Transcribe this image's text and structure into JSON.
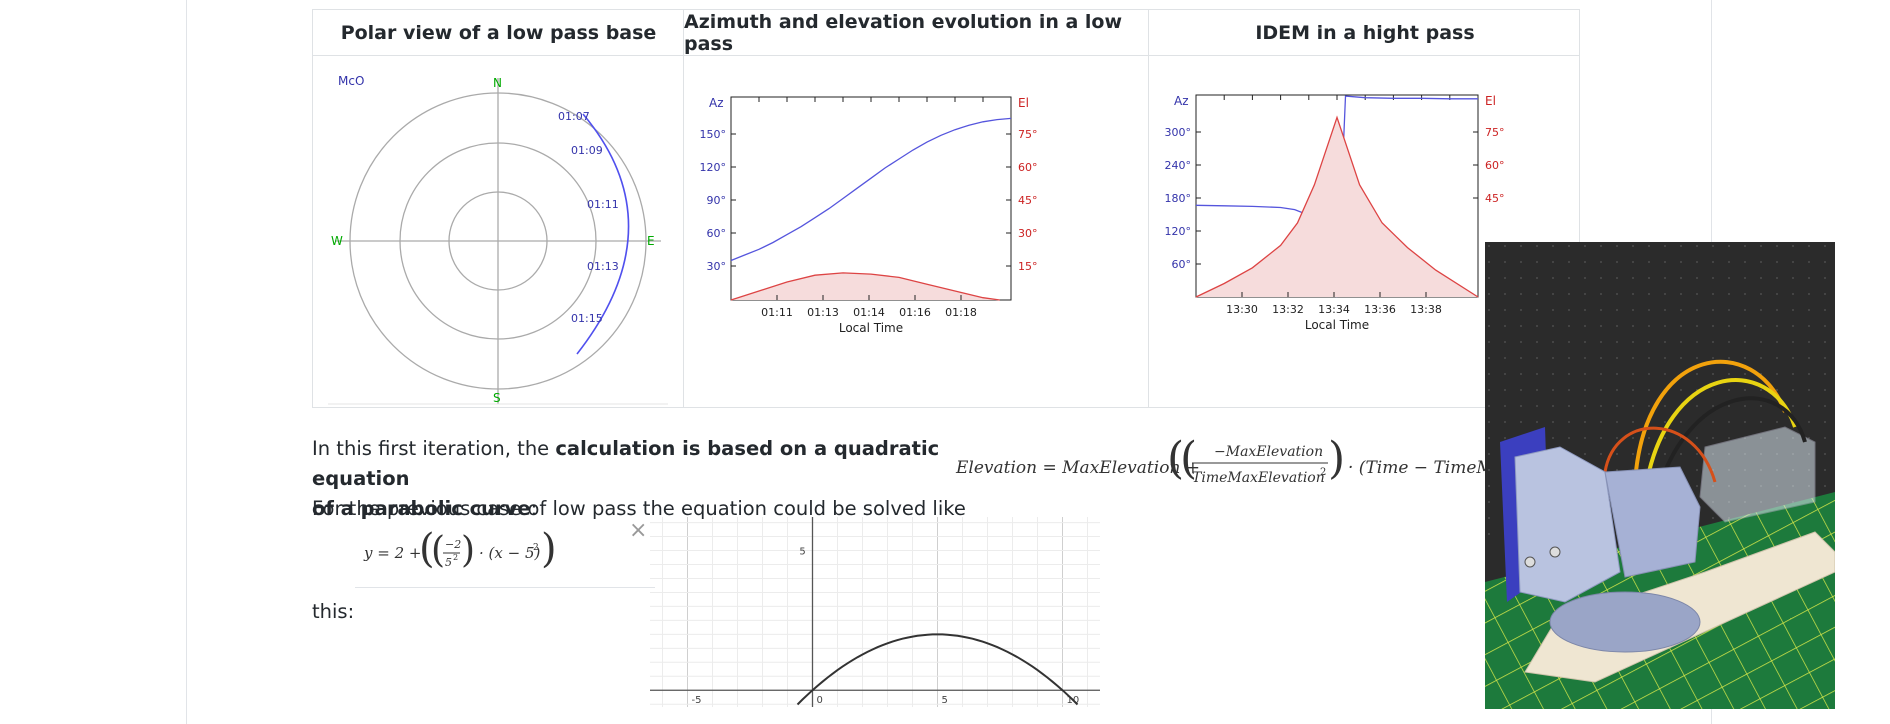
{
  "table": {
    "headers": [
      "Polar view of a low pass base",
      "Azimuth and elevation evolution in a low pass",
      "IDEM in a hight pass"
    ]
  },
  "polar": {
    "corner_label": "McO",
    "cardinals": {
      "n": "N",
      "s": "S",
      "e": "E",
      "w": "W"
    },
    "time_labels": [
      "01:07",
      "01:09",
      "01:11",
      "01:13",
      "01:15"
    ],
    "colors": {
      "ring": "#aaaaaa",
      "cardinal": "#00aa00",
      "track": "#5050ee",
      "label": "#3333aa"
    }
  },
  "chart_data": [
    {
      "type": "line",
      "title": "",
      "xlabel": "Local Time",
      "ylabel_left": "Az",
      "ylabel_right": "El",
      "x_ticks": [
        "01:11",
        "01:13",
        "01:14",
        "01:16",
        "01:18"
      ],
      "y_left_ticks": [
        "30°",
        "60°",
        "90°",
        "120°",
        "150°"
      ],
      "y_right_ticks": [
        "15°",
        "30°",
        "45°",
        "60°",
        "75°"
      ],
      "series": [
        {
          "axis": "left",
          "color": "#5555dd",
          "x": [
            0,
            0.05,
            0.1,
            0.15,
            0.2,
            0.25,
            0.3,
            0.35,
            0.4,
            0.45,
            0.5,
            0.55,
            0.6,
            0.65,
            0.7,
            0.75,
            0.8,
            0.85,
            0.9,
            0.95,
            1
          ],
          "y": [
            35,
            40,
            45,
            51,
            58,
            65,
            73,
            81,
            90,
            99,
            108,
            117,
            125,
            133,
            140,
            146,
            151,
            155,
            158,
            160,
            161
          ]
        },
        {
          "axis": "right",
          "color": "#dd4444",
          "fill": "#f6dcdc",
          "x": [
            0,
            0.1,
            0.2,
            0.3,
            0.4,
            0.5,
            0.6,
            0.7,
            0.8,
            0.9,
            0.96
          ],
          "y": [
            0,
            4,
            8,
            11,
            12,
            11.5,
            10,
            7,
            4,
            1,
            0
          ]
        }
      ],
      "ylim_left": [
        0,
        180
      ],
      "ylim_right": [
        0,
        90
      ]
    },
    {
      "type": "line",
      "title": "",
      "xlabel": "Local Time",
      "ylabel_left": "Az",
      "ylabel_right": "El",
      "x_ticks": [
        "13:30",
        "13:32",
        "13:34",
        "13:36",
        "13:38"
      ],
      "y_left_ticks": [
        "60°",
        "120°",
        "180°",
        "240°",
        "300°"
      ],
      "y_right_ticks": [
        "45°",
        "60°",
        "75°"
      ],
      "series": [
        {
          "axis": "left",
          "color": "#5555dd",
          "x": [
            0,
            0.1,
            0.2,
            0.3,
            0.35,
            0.4,
            0.45,
            0.5,
            0.53,
            0.6,
            0.7,
            0.8,
            0.9,
            1
          ],
          "y": [
            168,
            167,
            166,
            164,
            160,
            150,
            80,
            0,
            368,
            365,
            364,
            364,
            363,
            363
          ]
        },
        {
          "axis": "right",
          "color": "#dd4444",
          "fill": "#f6dcdc",
          "x": [
            0,
            0.1,
            0.2,
            0.3,
            0.36,
            0.42,
            0.5,
            0.58,
            0.66,
            0.75,
            0.85,
            1
          ],
          "y": [
            0,
            6,
            13,
            23,
            33,
            50,
            80,
            50,
            33,
            22,
            12,
            0
          ]
        }
      ],
      "ylim_left": [
        0,
        370
      ],
      "ylim_right": [
        0,
        90
      ]
    },
    {
      "type": "line",
      "title": "",
      "x_ticks": [
        "-5",
        "0",
        "5",
        "10"
      ],
      "y_ticks": [
        "5"
      ],
      "series": [
        {
          "color": "#333333",
          "x": [
            0,
            1,
            2,
            3,
            4,
            5,
            6,
            7,
            8,
            9,
            10
          ],
          "y": [
            0,
            0.72,
            1.28,
            1.68,
            1.92,
            2,
            1.92,
            1.68,
            1.28,
            0.72,
            0
          ]
        }
      ],
      "xlim": [
        -6.5,
        11.5
      ],
      "ylim": [
        -0.6,
        6.2
      ]
    }
  ],
  "text": {
    "p1_a": "In this first iteration, the ",
    "p1_b": "calculation is based on a quadratic equation",
    "p1_c": "of a parabolic curve",
    "p1_d": ":",
    "p2": "For the previous case of low pass the equation could be solved like",
    "p3": "this:"
  },
  "formula_main": {
    "lhs": "Elevation = MaxElevation +",
    "num": "−MaxElevation",
    "den": "TimeMaxElevation",
    "tail": "· (Time − TimeMaxE"
  },
  "formula_small": {
    "lhs": "y = 2 +",
    "num": "−2",
    "den": "5",
    "tail": "· (x − 5)"
  },
  "close_label": "×",
  "photo": {
    "colors": {
      "wall": "#2b2b2b",
      "mat": "#1d7a3c",
      "servo": "#3b3fbf",
      "bracket": "#b9c3e0",
      "breadboard": "#efe6d2"
    }
  }
}
